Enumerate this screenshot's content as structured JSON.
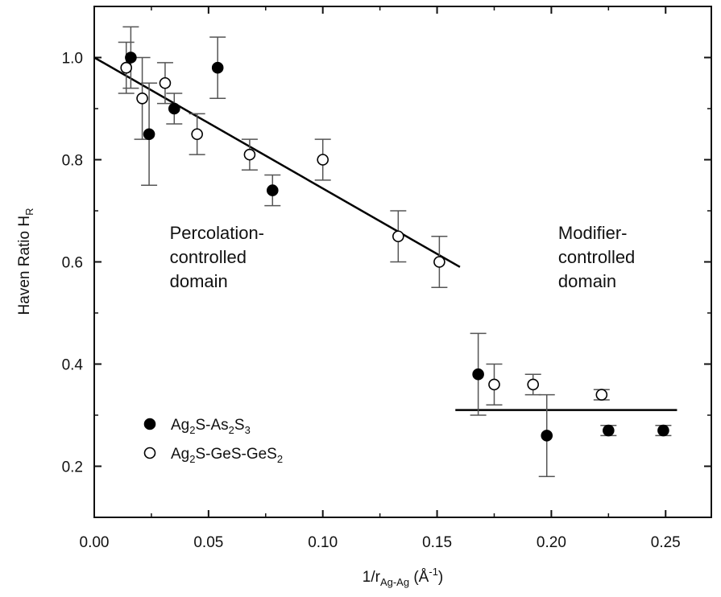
{
  "chart_data": {
    "type": "scatter",
    "xlabel_main": "1/r",
    "xlabel_sub": "Ag-Ag",
    "xlabel_unit_pre": " (Å",
    "xlabel_unit_sup": "-1",
    "xlabel_unit_post": ")",
    "ylabel_main": "Haven Ratio H",
    "ylabel_sub": "R",
    "xlim": [
      0.0,
      0.27
    ],
    "ylim": [
      0.1,
      1.1
    ],
    "x_ticks": [
      "0.00",
      "0.05",
      "0.10",
      "0.15",
      "0.20",
      "0.25"
    ],
    "x_tick_values": [
      0.0,
      0.05,
      0.1,
      0.15,
      0.2,
      0.25
    ],
    "y_ticks": [
      "0.2",
      "0.4",
      "0.6",
      "0.8",
      "1.0"
    ],
    "y_tick_values": [
      0.2,
      0.4,
      0.6,
      0.8,
      1.0
    ],
    "grid": false,
    "legend_position": "lower-left",
    "series": [
      {
        "name": "Ag2S-As2S3",
        "legend_label": [
          {
            "t": "Ag"
          },
          {
            "t": "2",
            "sub": true
          },
          {
            "t": "S-As"
          },
          {
            "t": "2",
            "sub": true
          },
          {
            "t": "S"
          },
          {
            "t": "3",
            "sub": true
          }
        ],
        "marker": "filled-circle",
        "color": "#000000",
        "points": [
          {
            "x": 0.016,
            "y": 1.0,
            "err": 0.06
          },
          {
            "x": 0.024,
            "y": 0.85,
            "err": 0.1
          },
          {
            "x": 0.035,
            "y": 0.9,
            "err": 0.03
          },
          {
            "x": 0.054,
            "y": 0.98,
            "err": 0.06
          },
          {
            "x": 0.078,
            "y": 0.74,
            "err": 0.03
          },
          {
            "x": 0.168,
            "y": 0.38,
            "err": 0.08
          },
          {
            "x": 0.198,
            "y": 0.26,
            "err": 0.08
          },
          {
            "x": 0.225,
            "y": 0.27,
            "err": 0.01
          },
          {
            "x": 0.249,
            "y": 0.27,
            "err": 0.01
          }
        ]
      },
      {
        "name": "Ag2S-GeS-GeS2",
        "legend_label": [
          {
            "t": "Ag"
          },
          {
            "t": "2",
            "sub": true
          },
          {
            "t": "S-GeS-GeS"
          },
          {
            "t": "2",
            "sub": true
          }
        ],
        "marker": "open-circle",
        "color": "#000000",
        "points": [
          {
            "x": 0.014,
            "y": 0.98,
            "err": 0.05
          },
          {
            "x": 0.021,
            "y": 0.92,
            "err": 0.08
          },
          {
            "x": 0.031,
            "y": 0.95,
            "err": 0.04
          },
          {
            "x": 0.045,
            "y": 0.85,
            "err": 0.04
          },
          {
            "x": 0.068,
            "y": 0.81,
            "err": 0.03
          },
          {
            "x": 0.1,
            "y": 0.8,
            "err": 0.04
          },
          {
            "x": 0.133,
            "y": 0.65,
            "err": 0.05
          },
          {
            "x": 0.151,
            "y": 0.6,
            "err": 0.05
          },
          {
            "x": 0.175,
            "y": 0.36,
            "err": 0.04
          },
          {
            "x": 0.192,
            "y": 0.36,
            "err": 0.02
          },
          {
            "x": 0.222,
            "y": 0.34,
            "err": 0.01
          }
        ]
      }
    ],
    "fit_lines": [
      {
        "x1": 0.0,
        "y1": 1.0,
        "x2": 0.16,
        "y2": 0.59
      },
      {
        "x1": 0.158,
        "y1": 0.31,
        "x2": 0.255,
        "y2": 0.31
      }
    ],
    "annotations": [
      {
        "lines": [
          "Percolation-",
          "controlled",
          "domain"
        ],
        "x": 0.033,
        "y": 0.645
      },
      {
        "lines": [
          "Modifier-",
          "controlled",
          "domain"
        ],
        "x": 0.203,
        "y": 0.645
      }
    ]
  }
}
